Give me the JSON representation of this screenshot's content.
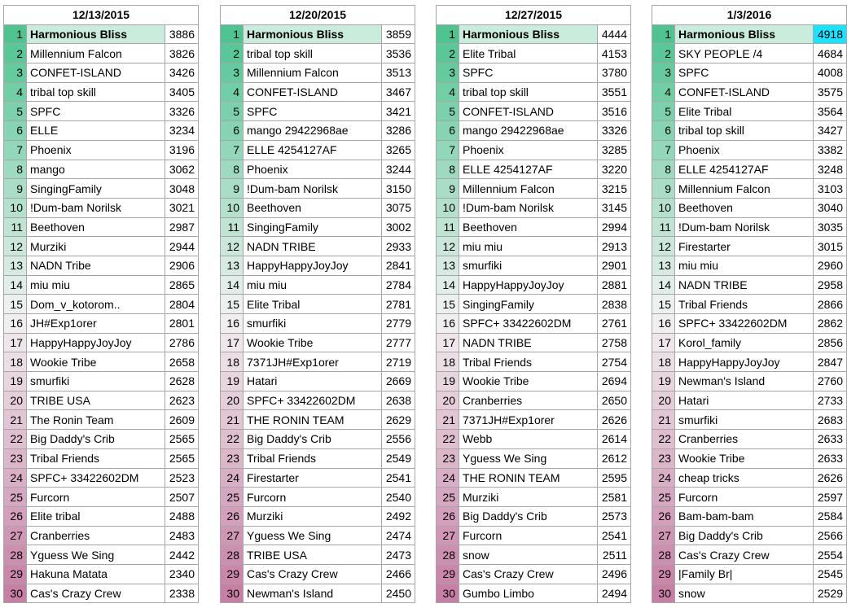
{
  "weeks": [
    {
      "date": "12/13/2015",
      "rows": [
        [
          "Harmonious Bliss",
          "3886"
        ],
        [
          "Millennium Falcon",
          "3826"
        ],
        [
          "CONFET-ISLAND",
          "3426"
        ],
        [
          "tribal top skill",
          "3405"
        ],
        [
          "SPFC",
          "3326"
        ],
        [
          "ELLE",
          "3234"
        ],
        [
          "Phoenix",
          "3196"
        ],
        [
          "mango",
          "3062"
        ],
        [
          "SingingFamily",
          "3048"
        ],
        [
          "!Dum-bam Norilsk",
          "3021"
        ],
        [
          "Beethoven",
          "2987"
        ],
        [
          "Murziki",
          "2944"
        ],
        [
          "NADN Tribe",
          "2906"
        ],
        [
          "miu miu",
          "2865"
        ],
        [
          "Dom_v_kotorom..",
          "2804"
        ],
        [
          "JH#Exp1orer",
          "2801"
        ],
        [
          "HappyHappyJoyJoy",
          "2786"
        ],
        [
          "Wookie Tribe",
          "2658"
        ],
        [
          "smurfiki",
          "2628"
        ],
        [
          "TRIBE USA",
          "2623"
        ],
        [
          "The Ronin Team",
          "2609"
        ],
        [
          "Big Daddy's Crib",
          "2565"
        ],
        [
          "Tribal Friends",
          "2565"
        ],
        [
          "SPFC+ 33422602DM",
          "2523"
        ],
        [
          "Furcorn",
          "2507"
        ],
        [
          "Elite tribal",
          "2488"
        ],
        [
          "Cranberries",
          "2483"
        ],
        [
          "Yguess We Sing",
          "2442"
        ],
        [
          "Hakuna Matata",
          "2340"
        ],
        [
          "Cas's Crazy Crew",
          "2338"
        ]
      ]
    },
    {
      "date": "12/20/2015",
      "rows": [
        [
          "Harmonious Bliss",
          "3859"
        ],
        [
          "tribal top skill",
          "3536"
        ],
        [
          "Millennium Falcon",
          "3513"
        ],
        [
          "CONFET-ISLAND",
          "3467"
        ],
        [
          "SPFC",
          "3421"
        ],
        [
          "mango 29422968ae",
          "3286"
        ],
        [
          "ELLE 4254127AF",
          "3265"
        ],
        [
          "Phoenix",
          "3244"
        ],
        [
          "!Dum-bam Norilsk",
          "3150"
        ],
        [
          "Beethoven",
          "3075"
        ],
        [
          "SingingFamily",
          "3002"
        ],
        [
          "NADN TRIBE",
          "2933"
        ],
        [
          "HappyHappyJoyJoy",
          "2841"
        ],
        [
          "miu miu",
          "2784"
        ],
        [
          "Elite Tribal",
          "2781"
        ],
        [
          "smurfiki",
          "2779"
        ],
        [
          "Wookie Tribe",
          "2777"
        ],
        [
          "7371JH#Exp1orer",
          "2719"
        ],
        [
          "Hatari",
          "2669"
        ],
        [
          "SPFC+ 33422602DM",
          "2638"
        ],
        [
          "THE RONIN TEAM",
          "2629"
        ],
        [
          "Big Daddy's Crib",
          "2556"
        ],
        [
          "Tribal Friends",
          "2549"
        ],
        [
          "Firestarter",
          "2541"
        ],
        [
          "Furcorn",
          "2540"
        ],
        [
          "Murziki",
          "2492"
        ],
        [
          "Yguess We Sing",
          "2474"
        ],
        [
          "TRIBE USA",
          "2473"
        ],
        [
          "Cas's Crazy Crew",
          "2466"
        ],
        [
          "Newman's Island",
          "2450"
        ]
      ]
    },
    {
      "date": "12/27/2015",
      "rows": [
        [
          "Harmonious Bliss",
          "4444"
        ],
        [
          "Elite Tribal",
          "4153"
        ],
        [
          "SPFC",
          "3780"
        ],
        [
          "tribal top skill",
          "3551"
        ],
        [
          "CONFET-ISLAND",
          "3516"
        ],
        [
          "mango 29422968ae",
          "3326"
        ],
        [
          "Phoenix",
          "3285"
        ],
        [
          "ELLE 4254127AF",
          "3220"
        ],
        [
          "Millennium Falcon",
          "3215"
        ],
        [
          "!Dum-bam Norilsk",
          "3145"
        ],
        [
          "Beethoven",
          "2994"
        ],
        [
          "miu miu",
          "2913"
        ],
        [
          "smurfiki",
          "2901"
        ],
        [
          "HappyHappyJoyJoy",
          "2881"
        ],
        [
          "SingingFamily",
          "2838"
        ],
        [
          "SPFC+ 33422602DM",
          "2761"
        ],
        [
          "NADN TRIBE",
          "2758"
        ],
        [
          "Tribal Friends",
          "2754"
        ],
        [
          "Wookie Tribe",
          "2694"
        ],
        [
          "Cranberries",
          "2650"
        ],
        [
          "7371JH#Exp1orer",
          "2626"
        ],
        [
          "Webb",
          "2614"
        ],
        [
          "Yguess We Sing",
          "2612"
        ],
        [
          "THE RONIN TEAM",
          "2595"
        ],
        [
          "Murziki",
          "2581"
        ],
        [
          "Big Daddy's Crib",
          "2573"
        ],
        [
          "Furcorn",
          "2541"
        ],
        [
          "snow",
          "2511"
        ],
        [
          "Cas's Crazy Crew",
          "2496"
        ],
        [
          "Gumbo Limbo",
          "2494"
        ]
      ]
    },
    {
      "date": "1/3/2016",
      "rows": [
        [
          "Harmonious Bliss",
          "4918"
        ],
        [
          "SKY PEOPLE /4",
          "4684"
        ],
        [
          "SPFC",
          "4008"
        ],
        [
          "CONFET-ISLAND",
          "3575"
        ],
        [
          "Elite Tribal",
          "3564"
        ],
        [
          "tribal top skill",
          "3427"
        ],
        [
          "Phoenix",
          "3382"
        ],
        [
          "ELLE 4254127AF",
          "3248"
        ],
        [
          "Millennium Falcon",
          "3103"
        ],
        [
          "Beethoven",
          "3040"
        ],
        [
          "!Dum-bam Norilsk",
          "3035"
        ],
        [
          "Firestarter",
          "3015"
        ],
        [
          "miu miu",
          "2960"
        ],
        [
          "NADN TRIBE",
          "2958"
        ],
        [
          "Tribal Friends",
          "2866"
        ],
        [
          "SPFC+ 33422602DM",
          "2862"
        ],
        [
          "Korol_family",
          "2856"
        ],
        [
          "HappyHappyJoyJoy",
          "2847"
        ],
        [
          "Newman's Island",
          "2760"
        ],
        [
          "Hatari",
          "2733"
        ],
        [
          "smurfiki",
          "2683"
        ],
        [
          "Cranberries",
          "2633"
        ],
        [
          "Wookie Tribe",
          "2633"
        ],
        [
          "cheap tricks",
          "2626"
        ],
        [
          "Furcorn",
          "2597"
        ],
        [
          "Bam-bam-bam",
          "2584"
        ],
        [
          "Big Daddy's Crib",
          "2566"
        ],
        [
          "Cas's Crazy Crew",
          "2554"
        ],
        [
          "|Family Br|",
          "2545"
        ],
        [
          "snow",
          "2529"
        ]
      ]
    }
  ],
  "colors": {
    "rank_top": "#4fc491",
    "rank_mid": "#f2f2f2",
    "rank_bottom": "#c77fa5",
    "first_row_fill": "#c9ecdc",
    "highlight_score": "#19e3ff"
  },
  "highlight": {
    "week": 3,
    "row": 0
  }
}
